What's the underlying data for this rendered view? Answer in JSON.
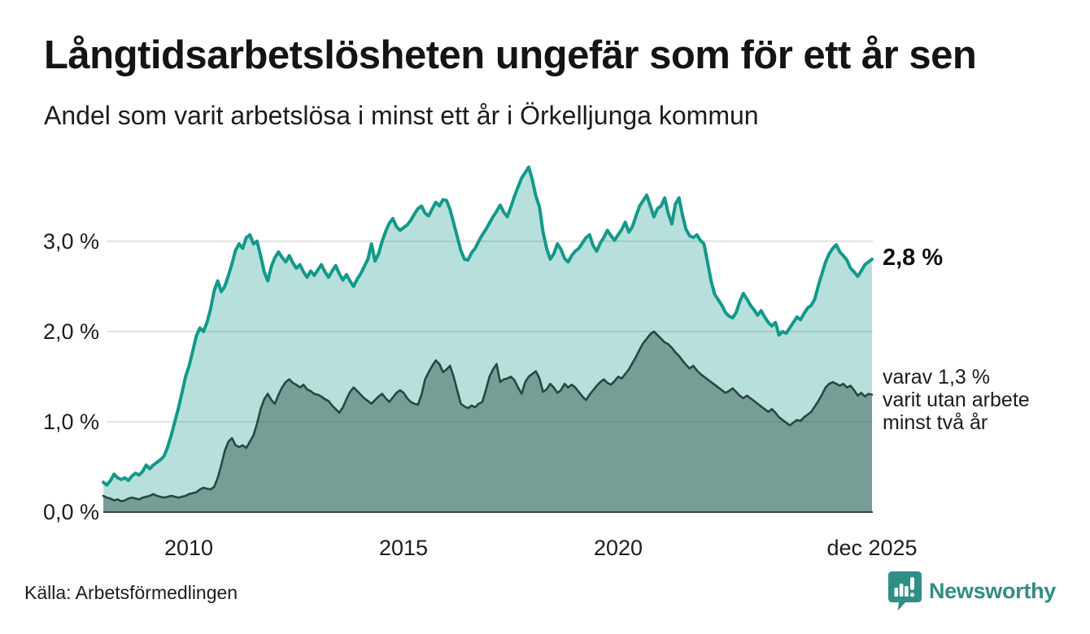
{
  "header": {
    "title": "Långtidsarbetslösheten ungefär som för ett år sen",
    "subtitle": "Andel som varit arbetslösa i minst ett år i Örkelljunga kommun"
  },
  "footer": {
    "source": "Källa: Arbetsförmedlingen",
    "logo_text": "Newsworthy"
  },
  "chart_data": {
    "type": "area",
    "title": "Långtidsarbetslösheten ungefär som för ett år sen",
    "subtitle": "Andel som varit arbetslösa i minst ett år i Örkelljunga kommun",
    "x_unit": "month",
    "x_start": "jan 2008",
    "x_end": "dec 2025",
    "ylim": [
      0,
      3.9
    ],
    "grid": "horizontal",
    "legend_position": "none",
    "y_ticks": [
      {
        "label": "0,0 %",
        "value": 0
      },
      {
        "label": "1,0 %",
        "value": 1
      },
      {
        "label": "2,0 %",
        "value": 2
      },
      {
        "label": "3,0 %",
        "value": 3
      }
    ],
    "x_ticks": [
      {
        "label": "2010",
        "month_index": 24
      },
      {
        "label": "2015",
        "month_index": 84
      },
      {
        "label": "2020",
        "month_index": 144
      },
      {
        "label": "dec 2025",
        "month_index": 215
      }
    ],
    "colors": {
      "grid": "#d9d9d9",
      "axis": "#3f3f3f",
      "logo": "#2f8e85"
    },
    "series": [
      {
        "name": "Andel arbetslösa minst ett år",
        "color": "#12998a",
        "fill": "rgba(18,153,138,0.30)",
        "stroke_width": 4,
        "values": [
          0.33,
          0.3,
          0.35,
          0.42,
          0.38,
          0.36,
          0.38,
          0.35,
          0.4,
          0.43,
          0.41,
          0.45,
          0.52,
          0.48,
          0.52,
          0.55,
          0.58,
          0.62,
          0.72,
          0.85,
          1.0,
          1.15,
          1.32,
          1.5,
          1.62,
          1.78,
          1.95,
          2.04,
          2.0,
          2.1,
          2.25,
          2.45,
          2.56,
          2.44,
          2.5,
          2.62,
          2.75,
          2.9,
          2.97,
          2.92,
          3.04,
          3.07,
          2.97,
          3.0,
          2.84,
          2.66,
          2.56,
          2.72,
          2.82,
          2.88,
          2.82,
          2.77,
          2.84,
          2.76,
          2.7,
          2.74,
          2.66,
          2.6,
          2.67,
          2.62,
          2.68,
          2.74,
          2.66,
          2.6,
          2.67,
          2.73,
          2.64,
          2.57,
          2.63,
          2.56,
          2.5,
          2.58,
          2.64,
          2.72,
          2.8,
          2.97,
          2.78,
          2.86,
          3.0,
          3.11,
          3.2,
          3.25,
          3.16,
          3.12,
          3.15,
          3.18,
          3.23,
          3.3,
          3.36,
          3.39,
          3.31,
          3.28,
          3.36,
          3.43,
          3.39,
          3.46,
          3.45,
          3.35,
          3.2,
          3.05,
          2.9,
          2.8,
          2.79,
          2.87,
          2.92,
          3.0,
          3.07,
          3.13,
          3.2,
          3.27,
          3.33,
          3.4,
          3.32,
          3.27,
          3.38,
          3.5,
          3.6,
          3.7,
          3.76,
          3.82,
          3.68,
          3.5,
          3.38,
          3.1,
          2.92,
          2.8,
          2.86,
          2.97,
          2.91,
          2.81,
          2.77,
          2.84,
          2.89,
          2.92,
          2.98,
          3.04,
          3.07,
          2.95,
          2.89,
          2.98,
          3.04,
          3.12,
          3.06,
          3.01,
          3.07,
          3.13,
          3.21,
          3.1,
          3.16,
          3.28,
          3.39,
          3.45,
          3.51,
          3.39,
          3.27,
          3.36,
          3.39,
          3.48,
          3.31,
          3.19,
          3.41,
          3.48,
          3.29,
          3.13,
          3.06,
          3.04,
          3.07,
          3.01,
          2.97,
          2.77,
          2.56,
          2.41,
          2.35,
          2.29,
          2.21,
          2.17,
          2.15,
          2.21,
          2.33,
          2.42,
          2.36,
          2.29,
          2.24,
          2.18,
          2.23,
          2.16,
          2.1,
          2.06,
          2.1,
          1.96,
          2.0,
          1.98,
          2.04,
          2.1,
          2.16,
          2.13,
          2.2,
          2.26,
          2.29,
          2.36,
          2.51,
          2.64,
          2.77,
          2.86,
          2.92,
          2.96,
          2.88,
          2.84,
          2.79,
          2.7,
          2.66,
          2.61,
          2.67,
          2.74,
          2.77,
          2.8
        ]
      },
      {
        "name": "Varav utan arbete minst två år",
        "color": "#2a463f",
        "fill": "rgba(40,77,66,0.45)",
        "stroke_width": 2.6,
        "values": [
          0.18,
          0.16,
          0.15,
          0.13,
          0.14,
          0.12,
          0.13,
          0.15,
          0.16,
          0.15,
          0.14,
          0.16,
          0.17,
          0.18,
          0.2,
          0.18,
          0.17,
          0.16,
          0.17,
          0.18,
          0.17,
          0.16,
          0.17,
          0.18,
          0.2,
          0.21,
          0.22,
          0.25,
          0.27,
          0.26,
          0.25,
          0.28,
          0.38,
          0.52,
          0.68,
          0.78,
          0.82,
          0.74,
          0.72,
          0.74,
          0.71,
          0.78,
          0.85,
          0.98,
          1.14,
          1.25,
          1.31,
          1.24,
          1.2,
          1.3,
          1.38,
          1.44,
          1.47,
          1.43,
          1.41,
          1.38,
          1.41,
          1.36,
          1.34,
          1.31,
          1.3,
          1.28,
          1.25,
          1.23,
          1.18,
          1.14,
          1.1,
          1.16,
          1.25,
          1.33,
          1.38,
          1.34,
          1.3,
          1.26,
          1.23,
          1.2,
          1.24,
          1.28,
          1.31,
          1.26,
          1.22,
          1.27,
          1.32,
          1.35,
          1.32,
          1.26,
          1.22,
          1.2,
          1.19,
          1.3,
          1.47,
          1.55,
          1.62,
          1.68,
          1.64,
          1.55,
          1.58,
          1.62,
          1.5,
          1.35,
          1.2,
          1.17,
          1.15,
          1.18,
          1.16,
          1.2,
          1.22,
          1.35,
          1.5,
          1.58,
          1.64,
          1.44,
          1.47,
          1.48,
          1.5,
          1.46,
          1.38,
          1.31,
          1.44,
          1.5,
          1.53,
          1.56,
          1.48,
          1.33,
          1.36,
          1.42,
          1.38,
          1.32,
          1.35,
          1.42,
          1.38,
          1.41,
          1.38,
          1.33,
          1.28,
          1.24,
          1.3,
          1.35,
          1.4,
          1.44,
          1.47,
          1.43,
          1.41,
          1.45,
          1.5,
          1.48,
          1.53,
          1.58,
          1.65,
          1.72,
          1.8,
          1.87,
          1.92,
          1.97,
          2.0,
          1.96,
          1.92,
          1.88,
          1.86,
          1.82,
          1.77,
          1.73,
          1.68,
          1.63,
          1.59,
          1.62,
          1.57,
          1.53,
          1.5,
          1.47,
          1.44,
          1.41,
          1.38,
          1.35,
          1.32,
          1.34,
          1.37,
          1.33,
          1.29,
          1.26,
          1.29,
          1.26,
          1.23,
          1.2,
          1.17,
          1.14,
          1.11,
          1.14,
          1.1,
          1.05,
          1.02,
          0.99,
          0.96,
          0.99,
          1.02,
          1.01,
          1.05,
          1.08,
          1.11,
          1.17,
          1.23,
          1.3,
          1.38,
          1.42,
          1.44,
          1.42,
          1.4,
          1.42,
          1.38,
          1.4,
          1.35,
          1.29,
          1.32,
          1.28,
          1.31,
          1.3
        ]
      }
    ],
    "annotations": {
      "latest_total": "2,8 %",
      "two_year_lines": [
        "varav 1,3 %",
        "varit utan arbete",
        "minst två år"
      ]
    }
  }
}
